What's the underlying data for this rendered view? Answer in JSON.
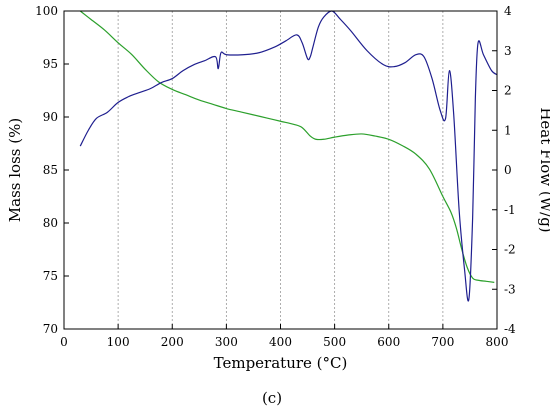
{
  "chart_data": {
    "type": "line",
    "title": "",
    "caption": "(c)",
    "xlabel": "Temperature (°C)",
    "ylabel_left": "Mass loss (%)",
    "ylabel_right": "Heat Flow (W/g)",
    "xlim": [
      0,
      800
    ],
    "ylim_left": [
      70,
      100
    ],
    "ylim_right": [
      -4,
      4
    ],
    "x_ticks": [
      0,
      100,
      200,
      300,
      400,
      500,
      600,
      700,
      800
    ],
    "y_left_ticks": [
      70,
      75,
      80,
      85,
      90,
      95,
      100
    ],
    "y_right_ticks": [
      -4,
      -3,
      -2,
      -1,
      0,
      1,
      2,
      3,
      4
    ],
    "grid": "vertical-dashed",
    "colors": {
      "mass": "#2ca02c",
      "heat": "#1f1f8f",
      "grid": "#9a9a9a"
    },
    "series": [
      {
        "axis": "left",
        "color": "#2ca02c",
        "x": [
          30,
          50,
          75,
          100,
          125,
          150,
          175,
          200,
          225,
          250,
          275,
          300,
          325,
          350,
          375,
          400,
          425,
          440,
          455,
          465,
          480,
          500,
          525,
          550,
          575,
          600,
          625,
          650,
          675,
          700,
          715,
          725,
          735,
          745,
          755,
          765,
          780,
          795
        ],
        "y": [
          100,
          99.2,
          98.2,
          97,
          95.9,
          94.5,
          93.3,
          92.6,
          92.1,
          91.6,
          91.2,
          90.8,
          90.5,
          90.2,
          89.9,
          89.6,
          89.3,
          89.0,
          88.2,
          87.9,
          87.9,
          88.1,
          88.3,
          88.4,
          88.2,
          87.9,
          87.3,
          86.5,
          85.1,
          82.5,
          81.0,
          79.5,
          77.5,
          75.8,
          74.8,
          74.6,
          74.5,
          74.4
        ]
      },
      {
        "axis": "right",
        "color": "#1f1f8f",
        "x": [
          30,
          45,
          60,
          80,
          100,
          120,
          140,
          160,
          180,
          200,
          220,
          240,
          260,
          280,
          285,
          290,
          300,
          330,
          360,
          390,
          410,
          430,
          440,
          450,
          455,
          460,
          470,
          480,
          495,
          510,
          530,
          560,
          590,
          610,
          630,
          650,
          665,
          680,
          695,
          705,
          712,
          720,
          730,
          740,
          748,
          755,
          760,
          765,
          775,
          790,
          800
        ],
        "y": [
          0.6,
          1.0,
          1.3,
          1.45,
          1.7,
          1.85,
          1.95,
          2.05,
          2.2,
          2.3,
          2.5,
          2.65,
          2.75,
          2.85,
          2.55,
          2.95,
          2.9,
          2.9,
          2.95,
          3.1,
          3.25,
          3.4,
          3.2,
          2.8,
          2.85,
          3.1,
          3.6,
          3.85,
          4.0,
          3.8,
          3.5,
          3.0,
          2.65,
          2.6,
          2.7,
          2.9,
          2.85,
          2.3,
          1.5,
          1.3,
          2.5,
          1.4,
          -1.0,
          -2.5,
          -3.25,
          -1.2,
          1.8,
          3.2,
          2.9,
          2.5,
          2.4
        ]
      }
    ]
  }
}
